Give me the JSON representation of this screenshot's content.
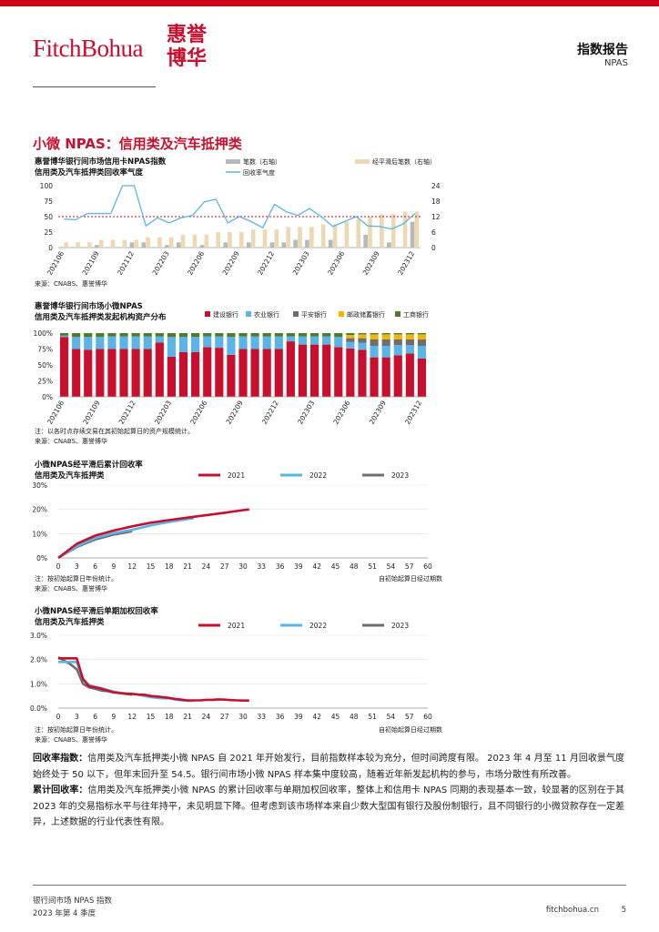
{
  "header": {
    "logo_text": "FitchBohua",
    "logo_cn_line1": "惠誉",
    "logo_cn_line2": "博华",
    "title": "指数报告",
    "subtitle": "NPAS"
  },
  "section_title": "小微 NPAS：信用类及汽车抵押类",
  "colors": {
    "red": "#c8102e",
    "lightblue": "#5bb4e5",
    "gray": "#6d6e71",
    "yellow": "#f2b705",
    "green": "#4a7c2a",
    "beige": "#ecd9b4",
    "bargray": "#b8b8b8"
  },
  "charts": [
    {
      "id": "chart1",
      "title_line1": "惠誉博华银行间市场信用卡NPAS指数",
      "title_line2": "信用类及汽车抵押类回收率气度",
      "legend": [
        "笔数（右轴）",
        "经平滑后笔数（右轴）",
        "回收率气度"
      ],
      "source": "来源：CNABS、惠誉博华"
    },
    {
      "id": "chart2",
      "title_line1": "惠誉博华银行间市场小微NPAS",
      "title_line2": "信用类及汽车抵押类发起机构资产分布",
      "legend": [
        "建设银行",
        "农业银行",
        "平安银行",
        "邮政储蓄银行",
        "工商银行"
      ],
      "note": "注：以各时点存续交易在其初始起算日的资产规模统计。",
      "source": "来源：CNABS、惠誉博华"
    },
    {
      "id": "chart3",
      "title_line1": "小微NPAS经平滑后累计回收率",
      "title_line2": "信用类及汽车抵押类",
      "legend": [
        "2021",
        "2022",
        "2023"
      ],
      "note": "注：按初始起算日年份统计。",
      "xlabel": "自初始起算日经过期数",
      "source": "来源：CNABS、惠誉博华"
    },
    {
      "id": "chart4",
      "title_line1": "小微NPAS经平滑后单期加权回收率",
      "title_line2": "信用类及汽车抵押类",
      "legend": [
        "2021",
        "2022",
        "2023"
      ],
      "note": "注：按初始起算日年份统计。",
      "xlabel": "自初始起算日经过期数",
      "source": "来源：CNABS、惠誉博华"
    }
  ],
  "chart_data": [
    {
      "type": "bar+line",
      "title": "惠誉博华银行间市场信用卡NPAS指数 信用类及汽车抵押类回收率气度",
      "categories": [
        "202106",
        "202107",
        "202108",
        "202109",
        "202110",
        "202111",
        "202112",
        "202201",
        "202202",
        "202203",
        "202204",
        "202205",
        "202206",
        "202207",
        "202208",
        "202209",
        "202210",
        "202211",
        "202212",
        "202301",
        "202302",
        "202303",
        "202304",
        "202305",
        "202306",
        "202307",
        "202308",
        "202309",
        "202310",
        "202311",
        "202312"
      ],
      "xtick_labels": [
        "202106",
        "202109",
        "202112",
        "202203",
        "202206",
        "202209",
        "202212",
        "202303",
        "202306",
        "202309",
        "202312"
      ],
      "y_left": {
        "ticks": [
          0,
          25,
          50,
          75,
          100
        ],
        "range": [
          0,
          100
        ]
      },
      "y_right": {
        "ticks": [
          0,
          6,
          12,
          18,
          24
        ],
        "range": [
          0,
          24
        ]
      },
      "reference_line_left": 50,
      "series": [
        {
          "name": "笔数（右轴）",
          "axis": "right",
          "kind": "bar",
          "values": [
            0,
            0,
            0,
            1,
            0,
            0,
            2,
            2,
            0,
            1,
            2,
            0,
            1,
            0,
            2,
            0,
            2,
            0,
            2,
            2,
            3,
            3,
            0,
            3,
            0,
            0,
            5,
            0,
            2,
            0,
            10
          ]
        },
        {
          "name": "经平滑后笔数（右轴）",
          "axis": "right",
          "kind": "bar",
          "values": [
            2,
            2,
            2,
            3,
            3,
            3,
            3,
            4,
            4,
            4,
            5,
            5,
            5,
            6,
            6,
            6,
            7,
            7,
            7,
            8,
            8,
            8,
            9,
            9,
            10,
            11,
            12,
            13,
            13,
            14,
            14
          ]
        },
        {
          "name": "回收率气度",
          "axis": "left",
          "kind": "line",
          "values": [
            46,
            45,
            55,
            55,
            55,
            100,
            100,
            35,
            48,
            40,
            48,
            52,
            74,
            78,
            40,
            50,
            42,
            32,
            70,
            58,
            52,
            63,
            50,
            34,
            42,
            50,
            35,
            34,
            30,
            38,
            54.5
          ]
        }
      ]
    },
    {
      "type": "stacked_bar",
      "title": "惠誉博华银行间市场小微NPAS 信用类及汽车抵押类发起机构资产分布",
      "categories": [
        "202106",
        "202107",
        "202108",
        "202109",
        "202110",
        "202111",
        "202112",
        "202201",
        "202202",
        "202203",
        "202204",
        "202205",
        "202206",
        "202207",
        "202208",
        "202209",
        "202210",
        "202211",
        "202212",
        "202301",
        "202302",
        "202303",
        "202304",
        "202305",
        "202306",
        "202307",
        "202308",
        "202309",
        "202310",
        "202311",
        "202312"
      ],
      "xtick_labels": [
        "202106",
        "202109",
        "202112",
        "202203",
        "202206",
        "202209",
        "202212",
        "202303",
        "202306",
        "202309",
        "202312"
      ],
      "y_ticks": [
        "0%",
        "25%",
        "50%",
        "75%",
        "100%"
      ],
      "series": [
        {
          "name": "建设银行",
          "values": [
            94,
            75,
            74,
            75,
            75,
            75,
            75,
            75,
            85,
            63,
            70,
            70,
            78,
            77,
            66,
            75,
            75,
            75,
            75,
            87,
            82,
            82,
            82,
            78,
            76,
            74,
            62,
            62,
            65,
            68,
            60
          ]
        },
        {
          "name": "农业银行",
          "values": [
            2,
            19,
            20,
            19,
            20,
            20,
            20,
            20,
            10,
            31,
            24,
            24,
            17,
            18,
            28,
            20,
            20,
            20,
            20,
            8,
            13,
            13,
            13,
            16,
            10,
            11,
            18,
            18,
            16,
            13,
            20
          ]
        },
        {
          "name": "平安银行",
          "values": [
            0,
            0,
            0,
            0,
            0,
            0,
            0,
            0,
            0,
            0,
            0,
            0,
            0,
            0,
            0,
            0,
            0,
            0,
            0,
            0,
            0,
            0,
            0,
            0,
            6,
            7,
            10,
            10,
            9,
            9,
            10
          ]
        },
        {
          "name": "邮政储蓄银行",
          "values": [
            0,
            0,
            0,
            0,
            0,
            0,
            0,
            0,
            0,
            0,
            0,
            0,
            0,
            0,
            0,
            0,
            0,
            0,
            0,
            0,
            0,
            0,
            0,
            0,
            5,
            6,
            8,
            8,
            8,
            8,
            8
          ]
        },
        {
          "name": "工商银行",
          "values": [
            4,
            6,
            6,
            6,
            5,
            5,
            5,
            5,
            5,
            6,
            6,
            6,
            5,
            5,
            6,
            5,
            5,
            5,
            5,
            5,
            5,
            5,
            5,
            6,
            3,
            2,
            2,
            2,
            2,
            2,
            2
          ]
        }
      ]
    },
    {
      "type": "line",
      "title": "小微NPAS经平滑后累计回收率 信用类及汽车抵押类",
      "xlabel": "自初始起算日经过期数",
      "x_ticks": [
        0,
        3,
        6,
        9,
        12,
        15,
        18,
        21,
        24,
        27,
        30,
        33,
        36,
        39,
        42,
        45,
        48,
        51,
        54,
        57,
        60
      ],
      "y_ticks": [
        "0%",
        "10%",
        "20%",
        "30%"
      ],
      "ylim": [
        0,
        30
      ],
      "xlim": [
        0,
        60
      ],
      "series": [
        {
          "name": "2021",
          "x": [
            0,
            3,
            6,
            9,
            12,
            15,
            18,
            21,
            24,
            27,
            30,
            31
          ],
          "y": [
            0,
            5.8,
            9.2,
            11.3,
            13.0,
            14.5,
            15.6,
            16.6,
            17.6,
            18.6,
            19.7,
            20.0
          ]
        },
        {
          "name": "2022",
          "x": [
            0,
            3,
            6,
            9,
            12,
            15,
            18,
            21,
            22
          ],
          "y": [
            0,
            4.8,
            8.2,
            10.2,
            11.6,
            13.4,
            14.8,
            16.0,
            16.4
          ]
        },
        {
          "name": "2023",
          "x": [
            0,
            3,
            6,
            9,
            12
          ],
          "y": [
            0,
            4.5,
            7.6,
            9.6,
            11.0
          ]
        }
      ]
    },
    {
      "type": "line",
      "title": "小微NPAS经平滑后单期加权回收率 信用类及汽车抵押类",
      "xlabel": "自初始起算日经过期数",
      "x_ticks": [
        0,
        3,
        6,
        9,
        12,
        15,
        18,
        21,
        24,
        27,
        30,
        33,
        36,
        39,
        42,
        45,
        48,
        51,
        54,
        57,
        60
      ],
      "y_ticks": [
        "0.0%",
        "1.0%",
        "2.0%",
        "3.0%"
      ],
      "ylim": [
        0,
        3
      ],
      "xlim": [
        0,
        60
      ],
      "series": [
        {
          "name": "2021",
          "x": [
            0,
            1,
            2,
            3,
            4,
            5,
            6,
            7,
            8,
            9,
            10,
            11,
            12,
            13,
            14,
            15,
            16,
            17,
            18,
            19,
            20,
            21,
            22,
            23,
            24,
            25,
            26,
            27,
            28,
            29,
            30,
            31
          ],
          "y": [
            2.05,
            2.05,
            2.05,
            2.05,
            1.2,
            0.9,
            0.85,
            0.8,
            0.72,
            0.65,
            0.62,
            0.6,
            0.58,
            0.56,
            0.55,
            0.5,
            0.48,
            0.45,
            0.42,
            0.38,
            0.35,
            0.32,
            0.32,
            0.32,
            0.34,
            0.34,
            0.36,
            0.35,
            0.33,
            0.32,
            0.31,
            0.31
          ]
        },
        {
          "name": "2022",
          "x": [
            0,
            1,
            2,
            3,
            4,
            5,
            6,
            7,
            8,
            9,
            10,
            11,
            12,
            13,
            14,
            15,
            16,
            17,
            18,
            19,
            20,
            21,
            22
          ],
          "y": [
            1.9,
            1.9,
            1.9,
            1.9,
            1.2,
            0.95,
            0.88,
            0.82,
            0.75,
            0.68,
            0.63,
            0.6,
            0.6,
            0.55,
            0.5,
            0.45,
            0.42,
            0.4,
            0.4,
            0.35,
            0.32,
            0.3,
            0.3
          ]
        },
        {
          "name": "2023",
          "x": [
            0,
            1,
            2,
            3,
            4,
            5,
            6,
            7,
            8,
            9,
            10,
            11,
            12
          ],
          "y": [
            2.1,
            1.95,
            1.8,
            1.6,
            1.0,
            0.85,
            0.8,
            0.72,
            0.7,
            0.65,
            0.62,
            0.58,
            0.55
          ]
        }
      ]
    }
  ],
  "body": {
    "p1_label": "回收率指数：",
    "p1_text": "信用类及汽车抵押类小微 NPAS 自 2021 年开始发行，目前指数样本较为充分，但时间跨度有限。 2023 年 4 月至 11 月回收景气度始终处于 50 以下，但年末回升至 54.5。银行间市场小微 NPAS 样本集中度较高，随着近年新发起机构的参与，市场分散性有所改善。",
    "p2_label": "累计回收率：",
    "p2_text": "信用类及汽车抵押类小微 NPAS 的累计回收率与单期加权回收率，整体上和信用卡 NPAS 同期的表现基本一致，较显著的区别在于其 2023 年的交易指标水平与往年持平，未见明显下降。但考虑到该市场样本来自少数大型国有银行及股份制银行，且不同银行的小微贷款存在一定差异，上述数据的行业代表性有限。"
  },
  "footer": {
    "line1": "银行间市场 NPAS 指数",
    "line2": "2023 年第 4 季度",
    "site": "fitchbohua.cn",
    "page": "5"
  }
}
